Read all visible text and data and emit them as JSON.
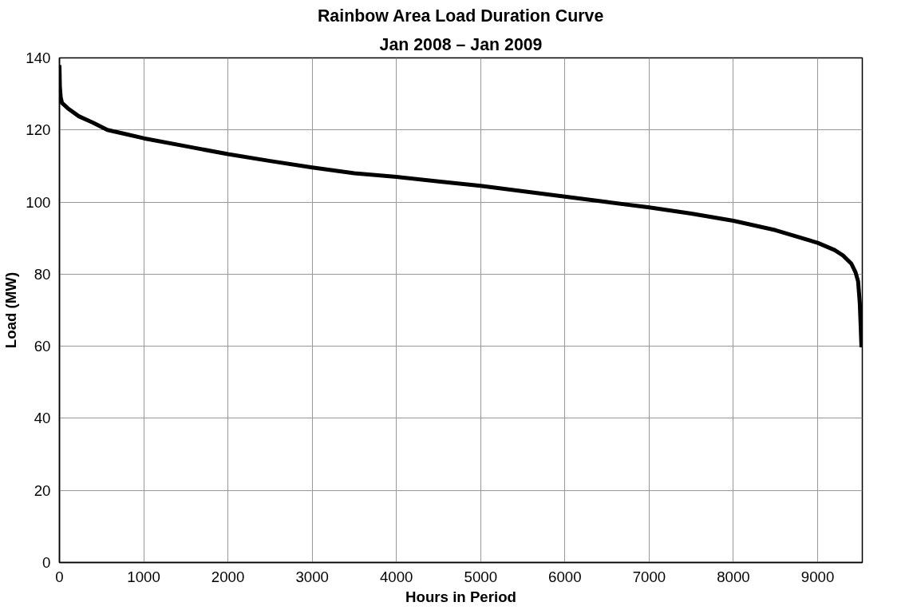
{
  "chart_data": {
    "type": "line",
    "title": "Rainbow Area Load Duration Curve",
    "subtitle": "Jan 2008 – Jan 2009",
    "xlabel": "Hours in Period",
    "ylabel": "Load (MW)",
    "x": [
      0,
      5,
      15,
      30,
      100,
      230,
      400,
      570,
      800,
      1000,
      1500,
      2000,
      2500,
      3000,
      3500,
      4000,
      4500,
      5000,
      5500,
      6000,
      6500,
      7000,
      7500,
      8000,
      8500,
      9000,
      9200,
      9300,
      9400,
      9450,
      9480,
      9500,
      9510,
      9520
    ],
    "series": [
      {
        "color": "#000000",
        "values": [
          138,
          132,
          129,
          127.5,
          126,
          123.8,
          122,
          120,
          118.8,
          117.7,
          115.5,
          113.3,
          111.4,
          109.6,
          108,
          107,
          105.7,
          104.5,
          103,
          101.5,
          100,
          98.5,
          96.8,
          94.8,
          92.2,
          88.7,
          86.7,
          85.2,
          82.9,
          80.5,
          78,
          72,
          66,
          59.7
        ]
      }
    ],
    "xlim": [
      0,
      9530
    ],
    "xticks": [
      0,
      1000,
      2000,
      3000,
      4000,
      5000,
      6000,
      7000,
      8000,
      9000
    ],
    "ylim": [
      0,
      140
    ],
    "yticks": [
      0,
      20,
      40,
      60,
      80,
      100,
      120,
      140
    ],
    "grid": true,
    "marker": "none",
    "line_style": "solid"
  }
}
